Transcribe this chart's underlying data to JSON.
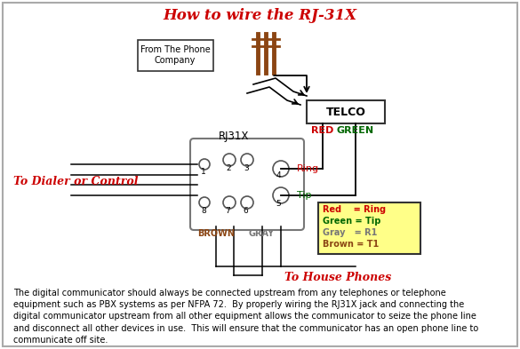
{
  "title": "How to wire the RJ-31X",
  "title_color": "#cc0000",
  "bg_color": "#ffffff",
  "border_color": "#888888",
  "body_text": "The digital communicator should always be connected upstream from any telephones or telephone\nequipment such as PBX systems as per NFPA 72.  By properly wiring the RJ31X jack and connecting the\ndigital communicator upstream from all other equipment allows the communicator to seize the phone line\nand disconnect all other devices in use.  This will ensure that the communicator has an open phone line to\ncommunicate off site.",
  "legend_items": [
    {
      "label": "Red    = Ring",
      "color": "#cc0000"
    },
    {
      "label": "Green = Tip",
      "color": "#006600"
    },
    {
      "label": "Gray   = R1",
      "color": "#777777"
    },
    {
      "label": "Brown = T1",
      "color": "#8B4513"
    }
  ],
  "rj31x_label": "RJ31X",
  "telco_label": "TELCO",
  "red_label": "RED",
  "green_label": "GREEN",
  "ring_label": "Ring",
  "tip_label": "Tip",
  "brown_label": "BROWN",
  "gray_label": "GRAY",
  "dialer_label": "To Dialer or Control",
  "house_label": "To House Phones",
  "phone_company_label": "From The Phone\nCompany"
}
